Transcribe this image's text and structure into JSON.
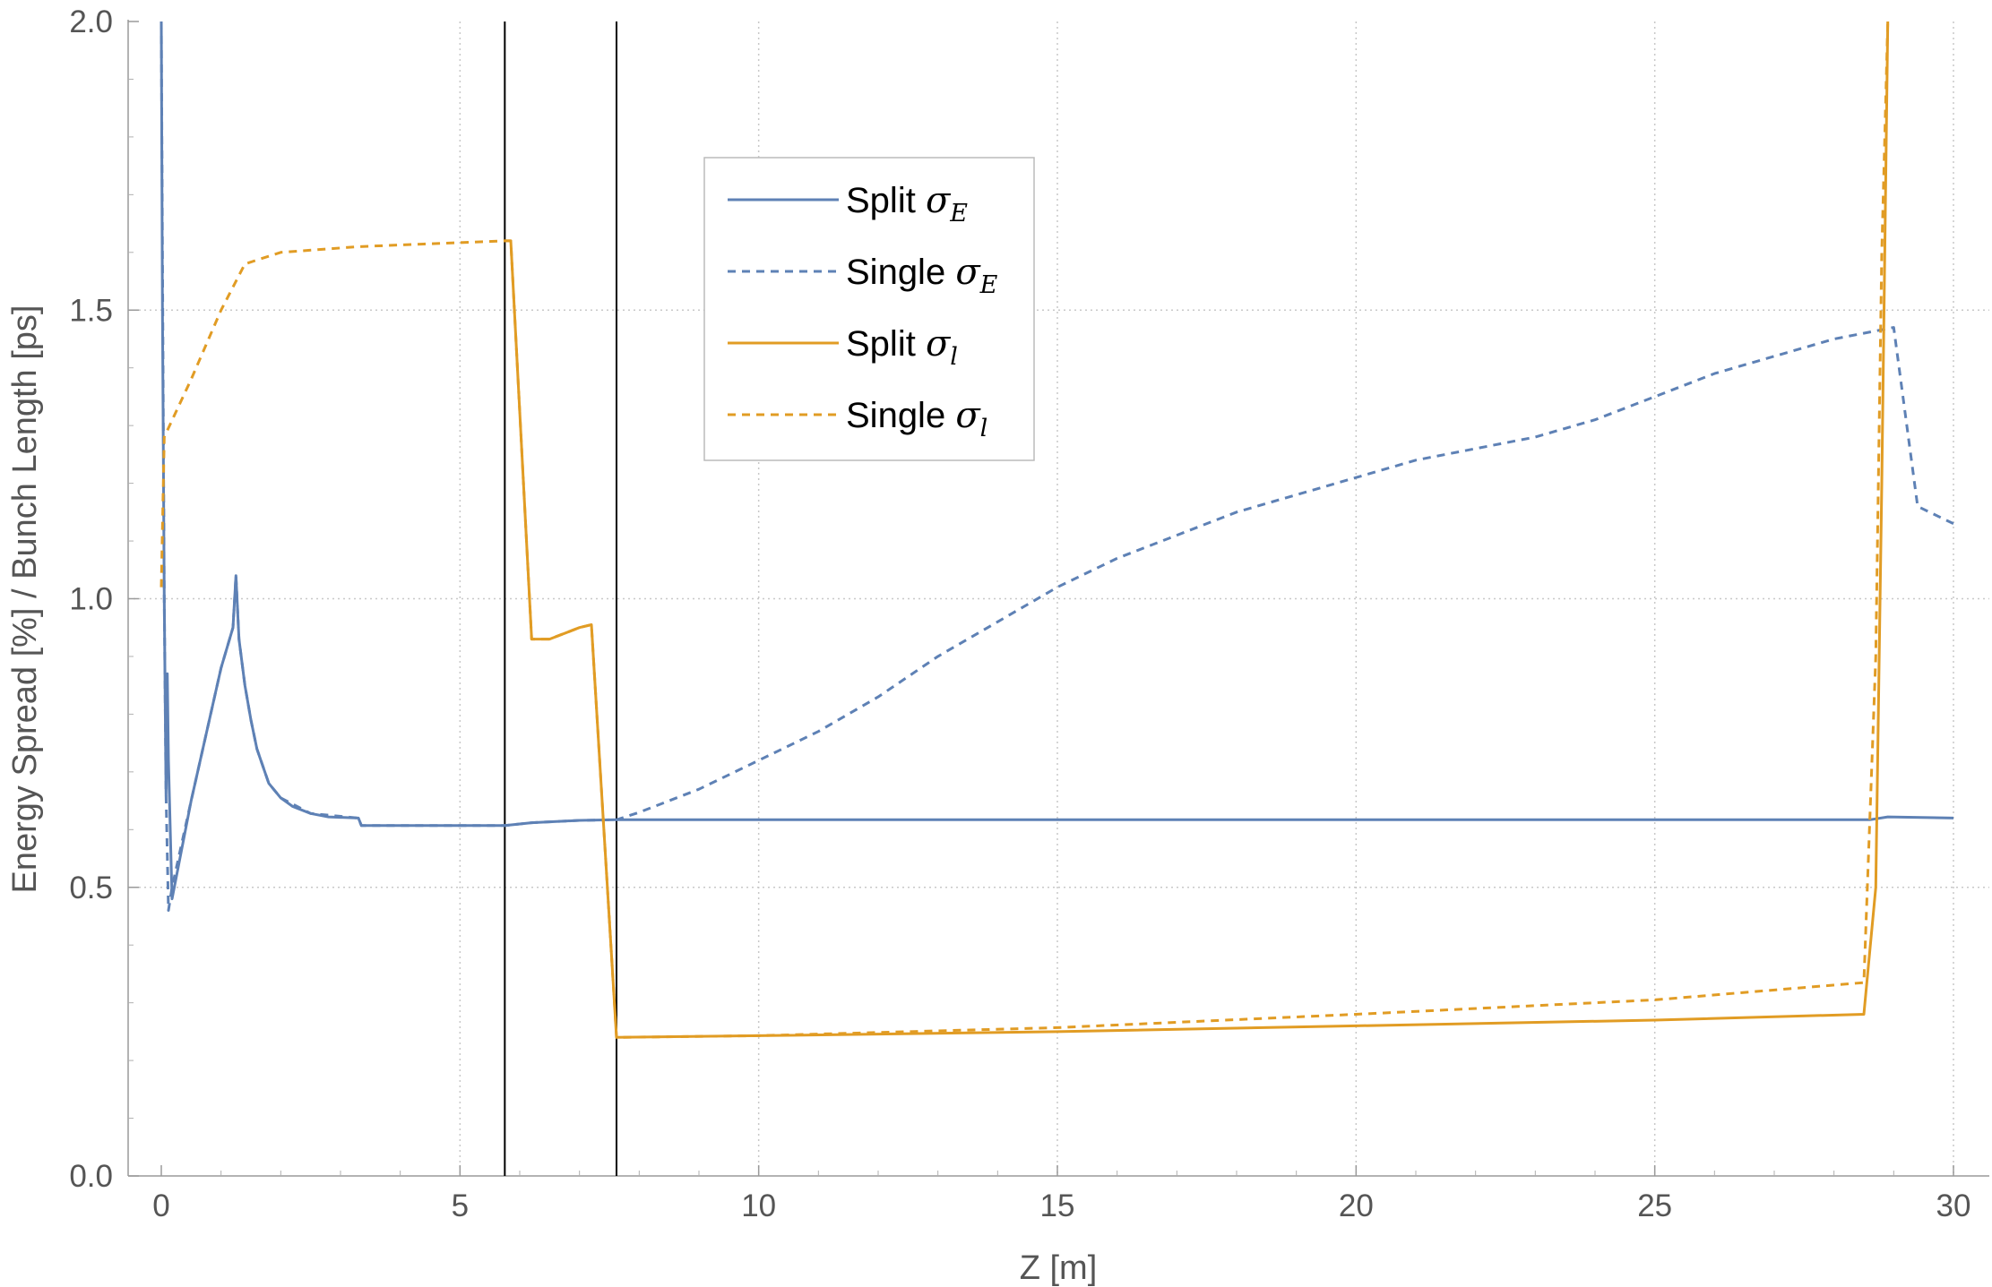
{
  "chart_data": {
    "type": "line",
    "xlabel": "Z [m]",
    "ylabel": "Energy Spread [%] / Bunch Length [ps]",
    "xlim": [
      -0.5,
      30.6
    ],
    "ylim": [
      0,
      2.0
    ],
    "x_ticks": [
      0,
      5,
      10,
      15,
      20,
      25,
      30
    ],
    "y_ticks": [
      0.0,
      0.5,
      1.0,
      1.5,
      2.0
    ],
    "x_tick_labels": [
      "0",
      "5",
      "10",
      "15",
      "20",
      "25",
      "30"
    ],
    "y_tick_labels": [
      "0.0",
      "0.5",
      "1.0",
      "1.5",
      "2.0"
    ],
    "grid": true,
    "legend_position": "top-center",
    "vertical_markers": [
      5.75,
      7.62
    ],
    "colors": {
      "blue": "#5e81b5",
      "orange": "#e19c24",
      "marker": "#000000",
      "grid": "#c8c8c8"
    },
    "series": [
      {
        "name": "Split",
        "symbol": "σ",
        "subscript": "E",
        "color": "#5e81b5",
        "dash": "solid",
        "points": [
          [
            0.0,
            2.0
          ],
          [
            0.02,
            1.5
          ],
          [
            0.05,
            1.0
          ],
          [
            0.08,
            0.66
          ],
          [
            0.1,
            0.87
          ],
          [
            0.12,
            0.72
          ],
          [
            0.18,
            0.48
          ],
          [
            0.5,
            0.65
          ],
          [
            1.0,
            0.88
          ],
          [
            1.2,
            0.95
          ],
          [
            1.25,
            1.04
          ],
          [
            1.3,
            0.93
          ],
          [
            1.4,
            0.85
          ],
          [
            1.5,
            0.79
          ],
          [
            1.6,
            0.74
          ],
          [
            1.7,
            0.71
          ],
          [
            1.8,
            0.68
          ],
          [
            2.0,
            0.655
          ],
          [
            2.2,
            0.64
          ],
          [
            2.5,
            0.628
          ],
          [
            2.8,
            0.622
          ],
          [
            3.3,
            0.62
          ],
          [
            3.35,
            0.607
          ],
          [
            5.75,
            0.607
          ],
          [
            6.2,
            0.612
          ],
          [
            7.0,
            0.616
          ],
          [
            7.62,
            0.617
          ],
          [
            10,
            0.617
          ],
          [
            15,
            0.617
          ],
          [
            20,
            0.617
          ],
          [
            25,
            0.617
          ],
          [
            28.6,
            0.617
          ],
          [
            28.9,
            0.622
          ],
          [
            30.0,
            0.62
          ]
        ]
      },
      {
        "name": "Single",
        "symbol": "σ",
        "subscript": "E",
        "color": "#5e81b5",
        "dash": "dashed",
        "points": [
          [
            0.0,
            2.0
          ],
          [
            0.02,
            1.6
          ],
          [
            0.05,
            1.0
          ],
          [
            0.08,
            0.66
          ],
          [
            0.12,
            0.46
          ],
          [
            0.18,
            0.5
          ],
          [
            0.5,
            0.65
          ],
          [
            1.0,
            0.88
          ],
          [
            1.2,
            0.95
          ],
          [
            1.25,
            1.04
          ],
          [
            1.3,
            0.93
          ],
          [
            1.4,
            0.85
          ],
          [
            1.5,
            0.79
          ],
          [
            1.6,
            0.74
          ],
          [
            1.8,
            0.68
          ],
          [
            2.0,
            0.655
          ],
          [
            2.5,
            0.628
          ],
          [
            3.3,
            0.62
          ],
          [
            3.35,
            0.607
          ],
          [
            5.75,
            0.607
          ],
          [
            6.2,
            0.612
          ],
          [
            7.0,
            0.616
          ],
          [
            7.62,
            0.617
          ],
          [
            8.0,
            0.63
          ],
          [
            9.0,
            0.67
          ],
          [
            10.0,
            0.72
          ],
          [
            11.0,
            0.77
          ],
          [
            12.0,
            0.83
          ],
          [
            13.0,
            0.9
          ],
          [
            14.0,
            0.96
          ],
          [
            15.0,
            1.02
          ],
          [
            16.0,
            1.07
          ],
          [
            17.0,
            1.11
          ],
          [
            18.0,
            1.15
          ],
          [
            19.0,
            1.18
          ],
          [
            20.0,
            1.21
          ],
          [
            21.0,
            1.24
          ],
          [
            22.0,
            1.26
          ],
          [
            23.0,
            1.28
          ],
          [
            24.0,
            1.31
          ],
          [
            25.0,
            1.35
          ],
          [
            26.0,
            1.39
          ],
          [
            27.0,
            1.42
          ],
          [
            28.0,
            1.45
          ],
          [
            29.0,
            1.47
          ],
          [
            29.4,
            1.16
          ],
          [
            30.0,
            1.13
          ]
        ]
      },
      {
        "name": "Split",
        "symbol": "σ",
        "subscript": "l",
        "color": "#e19c24",
        "dash": "solid",
        "points": [
          [
            5.75,
            1.62
          ],
          [
            5.85,
            1.62
          ],
          [
            6.2,
            0.93
          ],
          [
            6.5,
            0.93
          ],
          [
            7.0,
            0.95
          ],
          [
            7.2,
            0.955
          ],
          [
            7.62,
            0.24
          ],
          [
            10.0,
            0.243
          ],
          [
            15.0,
            0.25
          ],
          [
            20.0,
            0.26
          ],
          [
            25.0,
            0.27
          ],
          [
            28.5,
            0.28
          ],
          [
            28.7,
            0.5
          ],
          [
            28.8,
            1.2
          ],
          [
            28.9,
            2.0
          ]
        ]
      },
      {
        "name": "Single",
        "symbol": "σ",
        "subscript": "l",
        "color": "#e19c24",
        "dash": "dashed",
        "points": [
          [
            0.0,
            1.02
          ],
          [
            0.05,
            1.28
          ],
          [
            0.5,
            1.38
          ],
          [
            1.0,
            1.5
          ],
          [
            1.4,
            1.58
          ],
          [
            2.0,
            1.6
          ],
          [
            3.3,
            1.61
          ],
          [
            5.75,
            1.62
          ],
          [
            5.85,
            1.62
          ],
          [
            6.2,
            0.93
          ],
          [
            6.5,
            0.93
          ],
          [
            7.0,
            0.95
          ],
          [
            7.2,
            0.955
          ],
          [
            7.62,
            0.24
          ],
          [
            10.0,
            0.243
          ],
          [
            15.0,
            0.257
          ],
          [
            20.0,
            0.28
          ],
          [
            25.0,
            0.305
          ],
          [
            28.5,
            0.335
          ],
          [
            28.7,
            0.9
          ],
          [
            28.8,
            1.6
          ],
          [
            28.9,
            2.0
          ]
        ]
      }
    ]
  }
}
